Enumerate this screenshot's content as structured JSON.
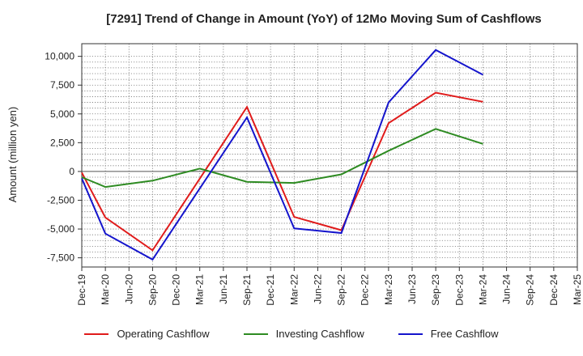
{
  "chart_data": {
    "type": "line",
    "title": "[7291]  Trend of Change in Amount (YoY) of 12Mo Moving Sum of Cashflows",
    "xlabel": "",
    "ylabel": "Amount (million yen)",
    "ylim": [
      -8300,
      11100
    ],
    "yticks": [
      -7500,
      -5000,
      -2500,
      0,
      2500,
      5000,
      7500,
      10000
    ],
    "ytick_labels": [
      "-7,500",
      "-5,000",
      "-2,500",
      "0",
      "2,500",
      "5,000",
      "7,500",
      "10,000"
    ],
    "categories": [
      "Dec-19",
      "Mar-20",
      "Jun-20",
      "Sep-20",
      "Dec-20",
      "Mar-21",
      "Jun-21",
      "Sep-21",
      "Dec-21",
      "Mar-22",
      "Jun-22",
      "Sep-22",
      "Dec-22",
      "Mar-23",
      "Jun-23",
      "Sep-23",
      "Dec-23",
      "Mar-24",
      "Jun-24",
      "Sep-24",
      "Dec-24",
      "Mar-25"
    ],
    "series": [
      {
        "name": "Operating Cashflow",
        "color": "#e01b1b",
        "values": [
          -100,
          -4000,
          null,
          -6850,
          null,
          null,
          null,
          5600,
          null,
          -3950,
          null,
          -5100,
          null,
          4200,
          null,
          6850,
          null,
          6050,
          null,
          null,
          null,
          null
        ]
      },
      {
        "name": "Investing Cashflow",
        "color": "#2e8b22",
        "values": [
          -500,
          -1350,
          null,
          -800,
          null,
          250,
          null,
          -900,
          null,
          -1000,
          null,
          -250,
          null,
          1800,
          null,
          3700,
          null,
          2400,
          null,
          null,
          null,
          null
        ]
      },
      {
        "name": "Free Cashflow",
        "color": "#1414cc",
        "values": [
          -600,
          -5400,
          null,
          -7650,
          null,
          null,
          null,
          4700,
          null,
          -4950,
          null,
          -5350,
          null,
          6000,
          null,
          10550,
          null,
          8400,
          null,
          null,
          null,
          null
        ]
      }
    ],
    "grid": true,
    "legend_position": "bottom"
  }
}
